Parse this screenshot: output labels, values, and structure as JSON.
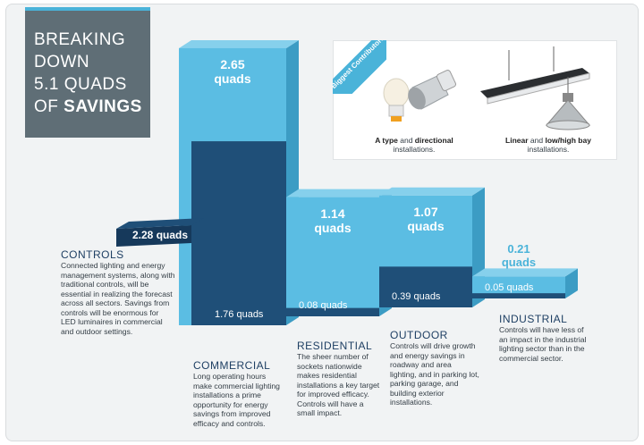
{
  "title": {
    "line1": "BREAKING",
    "line2": "DOWN",
    "line3": "5.1 QUADS",
    "line4_prefix": "OF ",
    "line4_bold": "SAVINGS"
  },
  "chart_data": {
    "type": "bar",
    "title": "BREAKING DOWN 5.1 QUADS OF SAVINGS",
    "categories": [
      "COMMERCIAL",
      "RESIDENTIAL",
      "OUTDOOR",
      "INDUSTRIAL"
    ],
    "series": [
      {
        "name": "",
        "values": [
          2.65,
          1.14,
          1.07,
          0.21
        ]
      },
      {
        "name": "",
        "values": [
          1.76,
          0.08,
          0.39,
          0.05
        ]
      }
    ],
    "controls_total": 2.28,
    "unit": "quads",
    "top_labels": [
      "2.65\nquads",
      "1.14\nquads",
      "1.07\nquads",
      "0.21\nquads"
    ],
    "base_labels": [
      "1.76 quads",
      "0.08 quads",
      "0.39 quads",
      "0.05 quads"
    ],
    "controls_label": "2.28 quads"
  },
  "sections": {
    "controls": {
      "title": "CONTROLS",
      "desc": "Connected lighting and energy management systems, along with traditional controls, will be essential in realizing the forecast across all sectors. Savings from controls will be enormous for LED luminaires in commercial and outdoor settings."
    },
    "commercial": {
      "title": "COMMERCIAL",
      "desc": "Long operating hours make commercial lighting installations a prime opportunity for energy savings from improved efficacy and controls."
    },
    "residential": {
      "title": "RESIDENTIAL",
      "desc": "The sheer number of sockets nationwide makes residential installations a key target for improved efficacy. Controls will have a small impact."
    },
    "outdoor": {
      "title": "OUTDOOR",
      "desc": "Controls will drive growth and energy savings in roadway and area lighting, and in parking lot, parking garage, and building exterior installations."
    },
    "industrial": {
      "title": "INDUSTRIAL",
      "desc": "Controls will have less of an impact in the industrial lighting sector than in the commercial sector."
    }
  },
  "contributors": {
    "ribbon": "Biggest Contributors",
    "left_bold1": "A type",
    "left_mid": " and ",
    "left_bold2": "directional",
    "left_line2": "installations.",
    "right_bold1": "Linear",
    "right_mid": " and ",
    "right_bold2": "low/high bay",
    "right_line2": "installations."
  },
  "colors": {
    "light": "#5bbde3",
    "light_side": "#3c9cc4",
    "light_top": "#86d0ec",
    "dark": "#1f4f78",
    "dark_side": "#173d5e",
    "band": "#16395b"
  }
}
